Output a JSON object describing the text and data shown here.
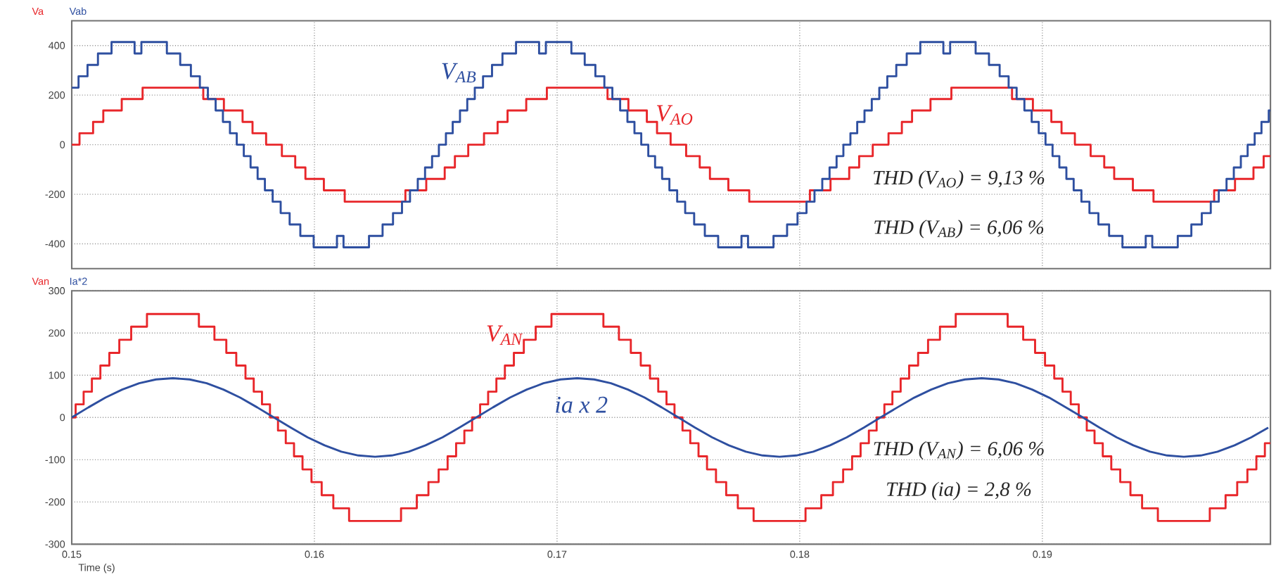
{
  "chart_data": [
    {
      "type": "step",
      "xlim": [
        0.15,
        0.1994
      ],
      "ylim": [
        -500,
        500
      ],
      "xticks": [
        0.15,
        0.16,
        0.17,
        0.18,
        0.19
      ],
      "yticks": [
        -400,
        -200,
        0,
        200,
        400
      ],
      "tick_labels": "y",
      "grid": true,
      "annotations": [
        "V$_{AB}$",
        "V$_{AO}$",
        "THD (V$_{AO}$) = 9,13 %",
        "THD (V$_{AB}$) = 6,06 %"
      ],
      "series": [
        {
          "name": "Va",
          "color": "#e8262a",
          "x": [
            0.15,
            0.15032,
            0.15088,
            0.1513,
            0.15206,
            0.15292,
            0.15542,
            0.15627,
            0.15704,
            0.15745,
            0.15801,
            0.15866,
            0.15921,
            0.15963,
            0.16039,
            0.16125,
            0.16375,
            0.16461,
            0.16537,
            0.16579,
            0.16634,
            0.16699,
            0.16755,
            0.16796,
            0.16873,
            0.16958,
            0.17208,
            0.17294,
            0.1737,
            0.17412,
            0.17468,
            0.17532,
            0.17588,
            0.1763,
            0.17706,
            0.17792,
            0.18042,
            0.18127,
            0.18204,
            0.18245,
            0.18301,
            0.18366,
            0.18421,
            0.18463,
            0.18539,
            0.18625,
            0.18875,
            0.18961,
            0.19037,
            0.19079,
            0.19134,
            0.19199,
            0.19255,
            0.19296,
            0.19373,
            0.19458,
            0.19708,
            0.19794,
            0.1987,
            0.19912,
            0.1994
          ],
          "values": [
            0,
            46,
            92,
            138,
            184,
            230,
            184,
            138,
            92,
            46,
            0,
            -46,
            -92,
            -138,
            -184,
            -230,
            -184,
            -138,
            -92,
            -46,
            0,
            46,
            92,
            138,
            184,
            230,
            184,
            138,
            92,
            46,
            0,
            -46,
            -92,
            -138,
            -184,
            -230,
            -184,
            -138,
            -92,
            -46,
            0,
            46,
            92,
            138,
            184,
            230,
            184,
            138,
            92,
            46,
            0,
            -46,
            -92,
            -138,
            -184,
            -230,
            -184,
            -138,
            -92,
            -46,
            -46
          ]
        },
        {
          "name": "Vab",
          "color": "#2e4fa0",
          "x": [
            0.15,
            0.15028,
            0.15065,
            0.15108,
            0.15164,
            0.15259,
            0.15287,
            0.15392,
            0.15447,
            0.15491,
            0.15528,
            0.15561,
            0.15593,
            0.15623,
            0.15652,
            0.1568,
            0.15709,
            0.15737,
            0.15766,
            0.15796,
            0.15828,
            0.15861,
            0.15898,
            0.15942,
            0.15997,
            0.16093,
            0.1612,
            0.16225,
            0.16281,
            0.16324,
            0.16361,
            0.16394,
            0.16426,
            0.16456,
            0.16485,
            0.16513,
            0.16542,
            0.1657,
            0.166,
            0.1663,
            0.16661,
            0.16695,
            0.16732,
            0.16775,
            0.16831,
            0.16926,
            0.16954,
            0.17059,
            0.17114,
            0.17158,
            0.17195,
            0.17228,
            0.1726,
            0.1729,
            0.17319,
            0.17347,
            0.17376,
            0.17404,
            0.17433,
            0.17463,
            0.17495,
            0.17528,
            0.17565,
            0.17609,
            0.17664,
            0.1776,
            0.17787,
            0.17892,
            0.17948,
            0.17991,
            0.18028,
            0.18061,
            0.18093,
            0.18123,
            0.18152,
            0.1818,
            0.18209,
            0.18237,
            0.18267,
            0.18297,
            0.18328,
            0.18361,
            0.18398,
            0.18441,
            0.18497,
            0.18592,
            0.1862,
            0.18725,
            0.1878,
            0.18824,
            0.18861,
            0.18894,
            0.18926,
            0.18956,
            0.18985,
            0.19013,
            0.19042,
            0.1907,
            0.19099,
            0.19129,
            0.19161,
            0.19194,
            0.19231,
            0.19275,
            0.1933,
            0.19426,
            0.19453,
            0.19558,
            0.19614,
            0.19657,
            0.19694,
            0.19727,
            0.19759,
            0.19789,
            0.19818,
            0.19846,
            0.19875,
            0.19903,
            0.19933,
            0.1994
          ],
          "values": [
            230,
            276,
            322,
            368,
            414,
            368,
            414,
            368,
            322,
            276,
            230,
            184,
            138,
            92,
            46,
            0,
            -46,
            -92,
            -138,
            -184,
            -230,
            -276,
            -322,
            -368,
            -414,
            -368,
            -414,
            -368,
            -322,
            -276,
            -230,
            -184,
            -138,
            -92,
            -46,
            0,
            46,
            92,
            138,
            184,
            230,
            276,
            322,
            368,
            414,
            368,
            414,
            368,
            322,
            276,
            230,
            184,
            138,
            92,
            46,
            0,
            -46,
            -92,
            -138,
            -184,
            -230,
            -276,
            -322,
            -368,
            -414,
            -368,
            -414,
            -368,
            -322,
            -276,
            -230,
            -184,
            -138,
            -92,
            -46,
            0,
            46,
            92,
            138,
            184,
            230,
            276,
            322,
            368,
            414,
            368,
            414,
            368,
            322,
            276,
            230,
            184,
            138,
            92,
            46,
            0,
            -46,
            -92,
            -138,
            -184,
            -230,
            -276,
            -322,
            -368,
            -414,
            -368,
            -414,
            -368,
            -322,
            -276,
            -230,
            -184,
            -138,
            -92,
            -46,
            0,
            46,
            92,
            138,
            138
          ]
        }
      ]
    },
    {
      "type": "step",
      "xlim": [
        0.15,
        0.1994
      ],
      "ylim": [
        -300,
        300
      ],
      "xticks": [
        0.15,
        0.16,
        0.17,
        0.18,
        0.19
      ],
      "yticks": [
        -300,
        -200,
        -100,
        0,
        100,
        200,
        300
      ],
      "grid": true,
      "xlabel": "Time (s)",
      "annotations": [
        "V$_{AN}$",
        "ia x 2",
        "THD (V$_{AN}$) = 6,06 %",
        "THD (ia) = 2,8 %"
      ],
      "series": [
        {
          "name": "Van",
          "color": "#e8262a",
          "x": [
            0.15,
            0.15016,
            0.15049,
            0.15083,
            0.15118,
            0.15155,
            0.15196,
            0.15245,
            0.1531,
            0.15524,
            0.15588,
            0.15637,
            0.15678,
            0.15716,
            0.1575,
            0.15784,
            0.15817,
            0.1585,
            0.15882,
            0.15916,
            0.15951,
            0.15988,
            0.1603,
            0.16078,
            0.16143,
            0.16357,
            0.16422,
            0.1647,
            0.16512,
            0.16549,
            0.16584,
            0.16618,
            0.1665,
            0.16683,
            0.16716,
            0.1675,
            0.16785,
            0.16822,
            0.16863,
            0.16912,
            0.16977,
            0.17191,
            0.17255,
            0.17304,
            0.17345,
            0.17383,
            0.17417,
            0.17451,
            0.17484,
            0.17517,
            0.17549,
            0.17583,
            0.17618,
            0.17655,
            0.17697,
            0.17745,
            0.1781,
            0.18024,
            0.18089,
            0.18137,
            0.18179,
            0.18216,
            0.18251,
            0.18285,
            0.18317,
            0.18349,
            0.18382,
            0.18416,
            0.18451,
            0.18488,
            0.18529,
            0.18578,
            0.18643,
            0.18857,
            0.18921,
            0.1897,
            0.19011,
            0.19049,
            0.19083,
            0.19117,
            0.1915,
            0.19183,
            0.19215,
            0.19249,
            0.19284,
            0.19321,
            0.19363,
            0.19411,
            0.19476,
            0.1969,
            0.19755,
            0.19803,
            0.19845,
            0.19882,
            0.19917,
            0.1994
          ],
          "values": [
            0,
            31,
            61,
            92,
            123,
            153,
            184,
            215,
            245,
            215,
            184,
            153,
            123,
            92,
            61,
            31,
            0,
            -31,
            -61,
            -92,
            -123,
            -153,
            -184,
            -215,
            -245,
            -215,
            -184,
            -153,
            -123,
            -92,
            -61,
            -31,
            0,
            31,
            61,
            92,
            123,
            153,
            184,
            215,
            245,
            215,
            184,
            153,
            123,
            92,
            61,
            31,
            0,
            -31,
            -61,
            -92,
            -123,
            -153,
            -184,
            -215,
            -245,
            -215,
            -184,
            -153,
            -123,
            -92,
            -61,
            -31,
            0,
            31,
            61,
            92,
            123,
            153,
            184,
            215,
            245,
            215,
            184,
            153,
            123,
            92,
            61,
            31,
            0,
            -31,
            -61,
            -92,
            -123,
            -153,
            -184,
            -215,
            -245,
            -215,
            -184,
            -153,
            -123,
            -92,
            -61,
            -61
          ]
        },
        {
          "name": "Ia*2",
          "color": "#2e4fa0",
          "type": "line",
          "x": [
            0.15,
            0.15069,
            0.15139,
            0.15208,
            0.15278,
            0.15347,
            0.15417,
            0.15486,
            0.15556,
            0.15625,
            0.15694,
            0.15764,
            0.15833,
            0.15903,
            0.15972,
            0.16042,
            0.16111,
            0.16181,
            0.1625,
            0.16319,
            0.16389,
            0.16458,
            0.16528,
            0.16597,
            0.16667,
            0.16736,
            0.16806,
            0.16875,
            0.16944,
            0.17014,
            0.17083,
            0.17153,
            0.17222,
            0.17292,
            0.17361,
            0.17431,
            0.175,
            0.17569,
            0.17639,
            0.17708,
            0.17778,
            0.17847,
            0.17917,
            0.17986,
            0.18056,
            0.18125,
            0.18194,
            0.18264,
            0.18333,
            0.18403,
            0.18472,
            0.18542,
            0.18611,
            0.18681,
            0.1875,
            0.18819,
            0.18889,
            0.18958,
            0.19028,
            0.19097,
            0.19167,
            0.19236,
            0.19306,
            0.19375,
            0.19444,
            0.19514,
            0.19583,
            0.19653,
            0.19722,
            0.19792,
            0.19861,
            0.19931
          ],
          "values": [
            0,
            24,
            47,
            66,
            81,
            90,
            93,
            90,
            81,
            66,
            47,
            24,
            0,
            -24,
            -47,
            -66,
            -81,
            -90,
            -93,
            -90,
            -81,
            -66,
            -47,
            -24,
            0,
            24,
            47,
            66,
            81,
            90,
            93,
            90,
            81,
            66,
            47,
            24,
            0,
            -24,
            -47,
            -66,
            -81,
            -90,
            -93,
            -90,
            -81,
            -66,
            -47,
            -24,
            0,
            24,
            47,
            66,
            81,
            90,
            93,
            90,
            81,
            66,
            47,
            24,
            0,
            -24,
            -47,
            -66,
            -81,
            -90,
            -93,
            -90,
            -81,
            -66,
            -47,
            -24
          ]
        }
      ]
    }
  ]
}
